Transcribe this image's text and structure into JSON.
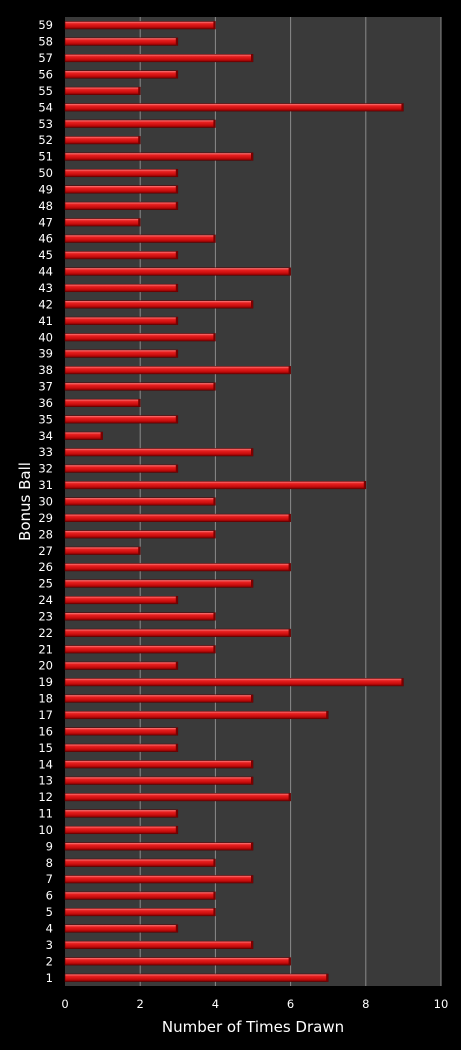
{
  "chart_data": {
    "type": "bar",
    "orientation": "horizontal",
    "xlabel": "Number of Times Drawn",
    "ylabel": "Bonus Ball",
    "xlim": [
      0,
      10
    ],
    "xticks": [
      0,
      2,
      4,
      6,
      8,
      10
    ],
    "grid": true,
    "legend": "none",
    "categories": [
      "1",
      "2",
      "3",
      "4",
      "5",
      "6",
      "7",
      "8",
      "9",
      "10",
      "11",
      "12",
      "13",
      "14",
      "15",
      "16",
      "17",
      "18",
      "19",
      "20",
      "21",
      "22",
      "23",
      "24",
      "25",
      "26",
      "27",
      "28",
      "29",
      "30",
      "31",
      "32",
      "33",
      "34",
      "35",
      "36",
      "37",
      "38",
      "39",
      "40",
      "41",
      "42",
      "43",
      "44",
      "45",
      "46",
      "47",
      "48",
      "49",
      "50",
      "51",
      "52",
      "53",
      "54",
      "55",
      "56",
      "57",
      "58",
      "59"
    ],
    "values": [
      7,
      6,
      5,
      3,
      4,
      4,
      5,
      4,
      5,
      3,
      3,
      6,
      5,
      5,
      3,
      3,
      7,
      5,
      9,
      3,
      4,
      6,
      4,
      3,
      5,
      6,
      2,
      4,
      6,
      4,
      8,
      3,
      5,
      1,
      3,
      2,
      4,
      6,
      3,
      4,
      3,
      5,
      3,
      6,
      3,
      4,
      2,
      3,
      3,
      3,
      5,
      2,
      4,
      9,
      2,
      3,
      5,
      3,
      4
    ],
    "colors": {
      "background": "#000000",
      "plot_area": "#3a3a3a",
      "gridline": "#8a8a8a",
      "bar": "#d81414",
      "bar_highlight": "#ff6a6a",
      "bar_shadow": "#7a0000",
      "text": "#ffffff"
    }
  }
}
